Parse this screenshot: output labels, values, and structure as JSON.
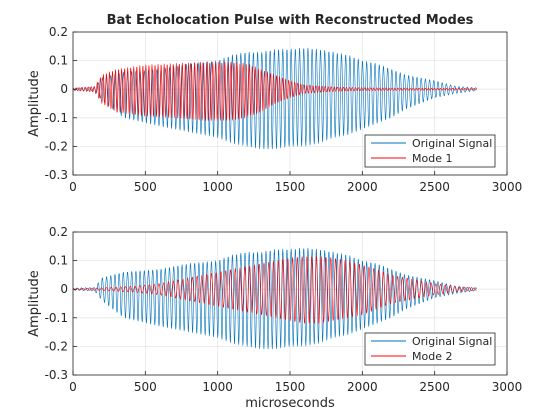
{
  "chart_data": [
    {
      "type": "line",
      "title": "Bat Echolocation Pulse with Reconstructed Modes",
      "xlabel": "",
      "ylabel": "Amplitude",
      "xlim": [
        0,
        3000
      ],
      "ylim": [
        -0.3,
        0.2
      ],
      "xticks": [
        0,
        500,
        1000,
        1500,
        2000,
        2500,
        3000
      ],
      "yticks": [
        -0.3,
        -0.2,
        -0.1,
        0,
        0.1,
        0.2
      ],
      "grid": true,
      "legend_position": "bottom-right",
      "series": [
        {
          "name": "Original Signal",
          "color": "#0072BD",
          "period_us": 29,
          "envelope_x": [
            0,
            150,
            200,
            350,
            600,
            800,
            1000,
            1100,
            1200,
            1300,
            1400,
            1500,
            1600,
            1700,
            1800,
            1900,
            2000,
            2100,
            2200,
            2300,
            2500,
            2650,
            2790
          ],
          "envelope_upper": [
            0.004,
            0.006,
            0.04,
            0.06,
            0.07,
            0.09,
            0.1,
            0.12,
            0.13,
            0.13,
            0.14,
            0.14,
            0.145,
            0.14,
            0.13,
            0.12,
            0.1,
            0.09,
            0.07,
            0.05,
            0.03,
            0.01,
            0.005
          ],
          "envelope_lower": [
            -0.004,
            -0.006,
            -0.04,
            -0.1,
            -0.13,
            -0.15,
            -0.17,
            -0.19,
            -0.2,
            -0.21,
            -0.21,
            -0.2,
            -0.2,
            -0.19,
            -0.17,
            -0.16,
            -0.14,
            -0.12,
            -0.1,
            -0.07,
            -0.03,
            -0.015,
            -0.005
          ]
        },
        {
          "name": "Mode 1",
          "color": "#FF0000",
          "period_us": 21,
          "envelope_x": [
            0,
            150,
            200,
            300,
            500,
            700,
            900,
            1100,
            1200,
            1300,
            1400,
            1500,
            1600,
            1800,
            2000,
            2300,
            2790
          ],
          "envelope_upper": [
            0.004,
            0.01,
            0.05,
            0.07,
            0.085,
            0.09,
            0.095,
            0.095,
            0.09,
            0.07,
            0.05,
            0.03,
            0.015,
            0.008,
            0.005,
            0.004,
            0.003
          ],
          "envelope_lower": [
            -0.004,
            -0.01,
            -0.05,
            -0.08,
            -0.095,
            -0.1,
            -0.11,
            -0.11,
            -0.1,
            -0.08,
            -0.05,
            -0.03,
            -0.015,
            -0.008,
            -0.005,
            -0.004,
            -0.003
          ]
        }
      ]
    },
    {
      "type": "line",
      "title": "",
      "xlabel": "microseconds",
      "ylabel": "Amplitude",
      "xlim": [
        0,
        3000
      ],
      "ylim": [
        -0.3,
        0.2
      ],
      "xticks": [
        0,
        500,
        1000,
        1500,
        2000,
        2500,
        3000
      ],
      "yticks": [
        -0.3,
        -0.2,
        -0.1,
        0,
        0.1,
        0.2
      ],
      "grid": true,
      "legend_position": "bottom-right",
      "series": [
        {
          "name": "Original Signal",
          "color": "#0072BD",
          "period_us": 29,
          "envelope_x": [
            0,
            150,
            200,
            350,
            600,
            800,
            1000,
            1100,
            1200,
            1300,
            1400,
            1500,
            1600,
            1700,
            1800,
            1900,
            2000,
            2100,
            2200,
            2300,
            2500,
            2650,
            2790
          ],
          "envelope_upper": [
            0.004,
            0.006,
            0.04,
            0.06,
            0.07,
            0.09,
            0.1,
            0.12,
            0.13,
            0.13,
            0.14,
            0.14,
            0.145,
            0.14,
            0.13,
            0.12,
            0.1,
            0.09,
            0.07,
            0.05,
            0.03,
            0.01,
            0.005
          ],
          "envelope_lower": [
            -0.004,
            -0.006,
            -0.04,
            -0.1,
            -0.13,
            -0.15,
            -0.17,
            -0.19,
            -0.2,
            -0.21,
            -0.21,
            -0.2,
            -0.2,
            -0.19,
            -0.17,
            -0.16,
            -0.14,
            -0.12,
            -0.1,
            -0.07,
            -0.03,
            -0.015,
            -0.005
          ]
        },
        {
          "name": "Mode 2",
          "color": "#FF0000",
          "period_us": 33,
          "envelope_x": [
            0,
            200,
            400,
            600,
            800,
            1000,
            1200,
            1400,
            1500,
            1600,
            1700,
            1800,
            1900,
            2000,
            2100,
            2200,
            2300,
            2500,
            2650,
            2790
          ],
          "envelope_upper": [
            0.002,
            0.005,
            0.01,
            0.02,
            0.04,
            0.06,
            0.08,
            0.1,
            0.11,
            0.115,
            0.115,
            0.11,
            0.1,
            0.085,
            0.07,
            0.05,
            0.04,
            0.02,
            0.01,
            0.004
          ],
          "envelope_lower": [
            -0.002,
            -0.005,
            -0.01,
            -0.02,
            -0.04,
            -0.06,
            -0.08,
            -0.1,
            -0.11,
            -0.12,
            -0.12,
            -0.11,
            -0.1,
            -0.09,
            -0.07,
            -0.05,
            -0.04,
            -0.02,
            -0.01,
            -0.004
          ]
        }
      ]
    }
  ]
}
